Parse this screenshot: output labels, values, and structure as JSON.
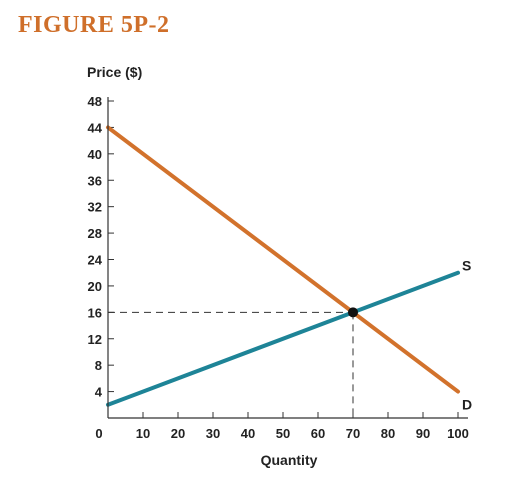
{
  "figure": {
    "label": "FIGURE 5P-2"
  },
  "colors": {
    "figure_label": "#cf6f2a",
    "demand": "#d2722c",
    "supply": "#1e8497",
    "axis": "#333333",
    "guide": "#333333",
    "point": "#111111"
  },
  "chart_data": {
    "type": "line",
    "title": "",
    "xlabel": "Quantity",
    "ylabel": "Price ($)",
    "xlim": [
      0,
      100
    ],
    "ylim": [
      0,
      48
    ],
    "x_ticks": [
      0,
      10,
      20,
      30,
      40,
      50,
      60,
      70,
      80,
      90,
      100
    ],
    "y_ticks": [
      4,
      8,
      12,
      16,
      20,
      24,
      28,
      32,
      36,
      40,
      44,
      48
    ],
    "grid": false,
    "series": [
      {
        "name": "D",
        "color": "#d2722c",
        "points": [
          [
            0,
            44
          ],
          [
            100,
            4
          ]
        ]
      },
      {
        "name": "S",
        "color": "#1e8497",
        "points": [
          [
            0,
            2
          ],
          [
            100,
            22
          ]
        ]
      }
    ],
    "equilibrium": {
      "x": 70,
      "y": 16
    }
  }
}
